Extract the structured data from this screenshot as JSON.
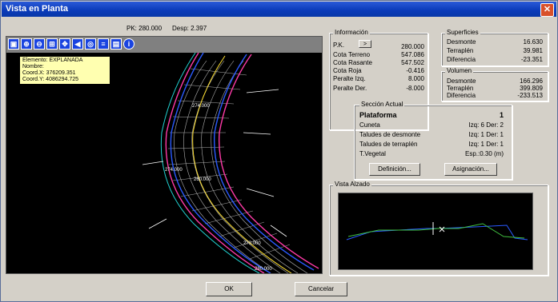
{
  "window": {
    "title": "Vista en Planta",
    "close_glyph": "✕"
  },
  "status": {
    "pk_label": "PK: 280.000",
    "desp_label": "Desp: 2.397"
  },
  "toolbar": {
    "icons": [
      "zoom-window-icon",
      "zoom-in-icon",
      "zoom-out-icon",
      "zoom-all-icon",
      "pan-icon",
      "zoom-prev-icon",
      "zoom-extent-icon",
      "layers-icon",
      "print-icon",
      "info-icon"
    ]
  },
  "tooltip": {
    "elemento": "Elemento: EXPLANADA",
    "nombre": "Nombre:",
    "coord_x": "Coord.X: 376209.351",
    "coord_y": "Coord.Y: 4086294.725"
  },
  "plan_labels": [
    "274.000",
    "274.000",
    "260.000",
    "270.000",
    "280.000",
    "290.000",
    "300.000"
  ],
  "informacion": {
    "title": "Información",
    "pk_label": "P.K.",
    "pk_button": ">",
    "pk_value": "280.000",
    "cota_terreno_label": "Cota Terreno",
    "cota_terreno_value": "547.086",
    "cota_rasante_label": "Cota Rasante",
    "cota_rasante_value": "547.502",
    "cota_roja_label": "Cota Roja",
    "cota_roja_value": "-0.416",
    "peralte_izq_label": "Peralte Izq.",
    "peralte_izq_value": "8.000",
    "peralte_der_label": "Peralte Der.",
    "peralte_der_value": "-8.000"
  },
  "superficies": {
    "title": "Superficies",
    "desmonte_label": "Desmonte",
    "desmonte_value": "16.630",
    "terraplen_label": "Terraplén",
    "terraplen_value": "39.981",
    "diferencia_label": "Diferencia",
    "diferencia_value": "-23.351"
  },
  "volumen": {
    "title": "Volumen",
    "desmonte_label": "Desmonte",
    "desmonte_value": "166.296",
    "terraplen_label": "Terraplén",
    "terraplen_value": "399.809",
    "diferencia_label": "Diferencia",
    "diferencia_value": "-233.513"
  },
  "seccion": {
    "title": "Sección Actual",
    "plataforma_label": "Plataforma",
    "plataforma_value": "1",
    "cuneta_label": "Cuneta",
    "cuneta_value": "Izq: 6  Der: 2",
    "taludes_desmonte_label": "Taludes de desmonte",
    "taludes_desmonte_value": "Izq: 1  Der: 1",
    "taludes_terraplen_label": "Taludes de terraplén",
    "taludes_terraplen_value": "Izq: 1  Der: 1",
    "tvegetal_label": "T.Vegetal",
    "tvegetal_value": "Esp.:0.30 (m)",
    "definicion_button": "Definición...",
    "asignacion_button": "Asignación..."
  },
  "alzado": {
    "title": "Vista Alzado"
  },
  "buttons": {
    "ok": "OK",
    "cancel": "Cancelar"
  }
}
